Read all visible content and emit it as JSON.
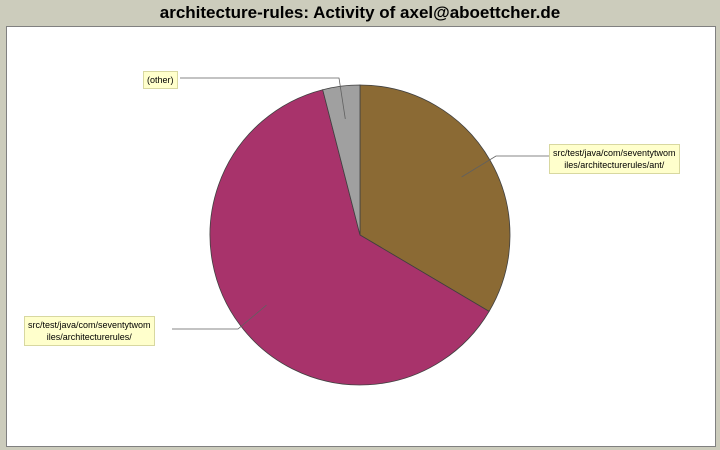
{
  "title": "architecture-rules: Activity of axel@aboettcher.de",
  "colors": {
    "background": "#ccccbc",
    "plot_background": "#ffffff",
    "label_background": "#ffffcc"
  },
  "chart_data": {
    "type": "pie",
    "title": "architecture-rules: Activity of axel@aboettcher.de",
    "legend": "none",
    "slices": [
      {
        "label_lines": [
          "src/test/java/com/seventytwom",
          "iles/architecturerules/ant/"
        ],
        "value": 33.5,
        "color": "#8b6a34"
      },
      {
        "label_lines": [
          "src/test/java/com/seventytwom",
          "iles/architecturerules/"
        ],
        "value": 62.5,
        "color": "#a8336b"
      },
      {
        "label_lines": [
          "(other)"
        ],
        "value": 4.0,
        "color": "#a0a0a0"
      }
    ]
  }
}
